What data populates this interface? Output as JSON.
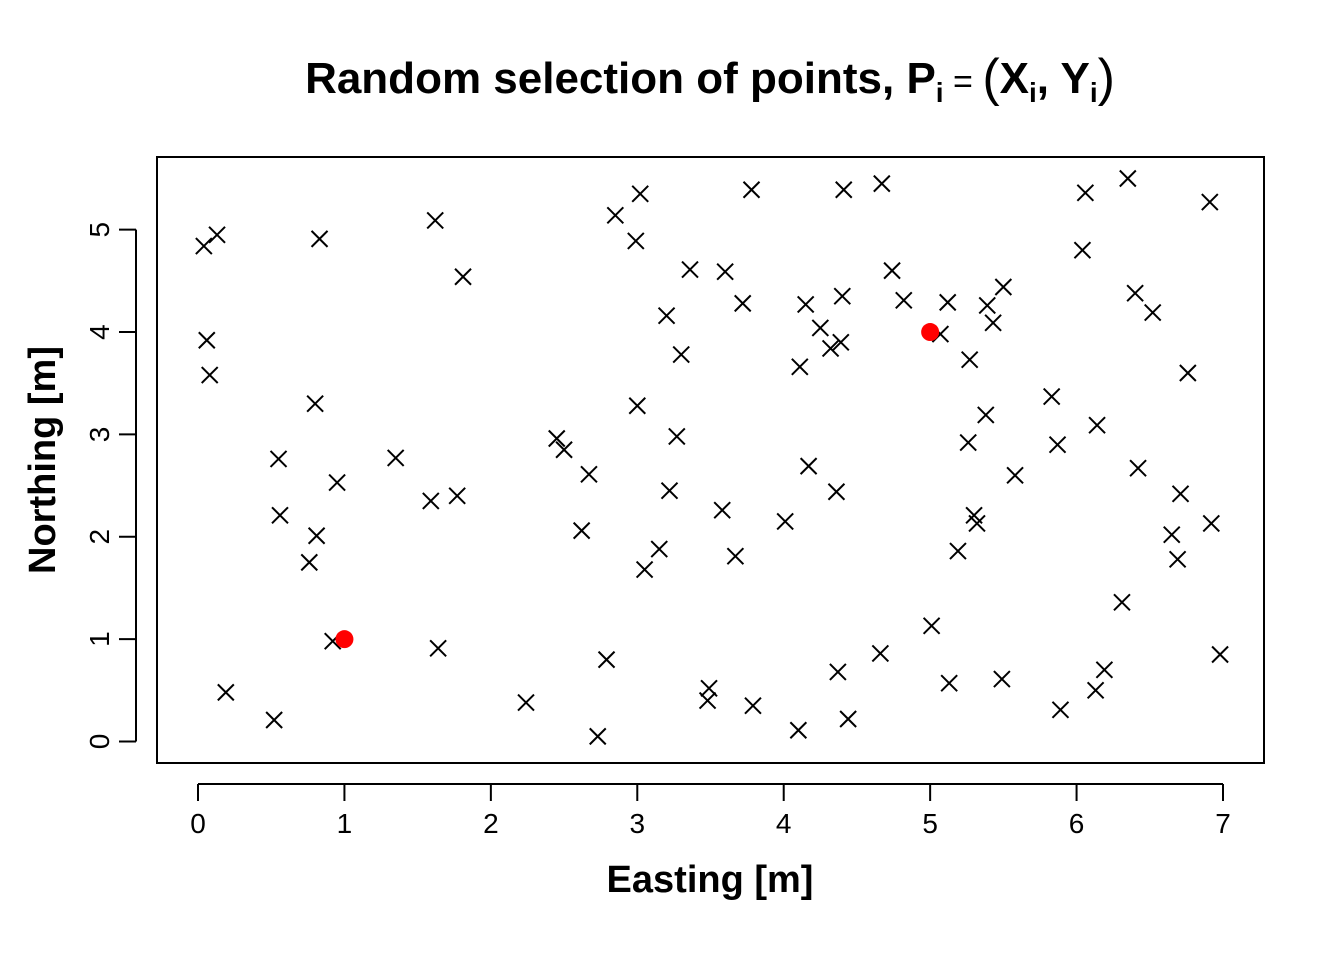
{
  "chart_data": {
    "type": "scatter",
    "title": {
      "prefix": "Random selection of points, ",
      "p": "P",
      "sub_i": "i",
      "equals": " = ",
      "lparen": "(",
      "x": "X",
      "comma": ", ",
      "y": "Y",
      "rparen": ")"
    },
    "xlabel": "Easting [m]",
    "ylabel": "Northing [m]",
    "xlim": [
      -0.28,
      7.28
    ],
    "ylim": [
      -0.21,
      5.71
    ],
    "xticks": [
      0,
      1,
      2,
      3,
      4,
      5,
      6,
      7
    ],
    "yticks": [
      0,
      1,
      2,
      3,
      4,
      5
    ],
    "grid": false,
    "marker_color": "#000000",
    "highlight_color": "#ff0000",
    "highlight_points": [
      [
        1.0,
        1.0
      ],
      [
        5.0,
        4.0
      ]
    ],
    "points": [
      [
        0.04,
        4.84
      ],
      [
        0.13,
        4.95
      ],
      [
        0.06,
        3.92
      ],
      [
        0.08,
        3.58
      ],
      [
        0.19,
        0.48
      ],
      [
        0.52,
        0.21
      ],
      [
        0.55,
        2.76
      ],
      [
        0.56,
        2.21
      ],
      [
        0.76,
        1.75
      ],
      [
        0.8,
        3.3
      ],
      [
        0.81,
        2.01
      ],
      [
        0.83,
        4.91
      ],
      [
        0.92,
        0.98
      ],
      [
        0.95,
        2.53
      ],
      [
        1.35,
        2.77
      ],
      [
        1.59,
        2.35
      ],
      [
        1.62,
        5.09
      ],
      [
        1.64,
        0.91
      ],
      [
        1.77,
        2.4
      ],
      [
        1.81,
        4.54
      ],
      [
        2.24,
        0.38
      ],
      [
        2.45,
        2.96
      ],
      [
        2.5,
        2.85
      ],
      [
        2.62,
        2.06
      ],
      [
        2.67,
        2.61
      ],
      [
        2.73,
        0.05
      ],
      [
        2.79,
        0.8
      ],
      [
        2.85,
        5.14
      ],
      [
        2.99,
        4.89
      ],
      [
        3.0,
        3.28
      ],
      [
        3.02,
        5.35
      ],
      [
        3.05,
        1.68
      ],
      [
        3.15,
        1.88
      ],
      [
        3.2,
        4.16
      ],
      [
        3.22,
        2.45
      ],
      [
        3.27,
        2.98
      ],
      [
        3.3,
        3.78
      ],
      [
        3.36,
        4.61
      ],
      [
        3.48,
        0.4
      ],
      [
        3.49,
        0.52
      ],
      [
        3.58,
        2.26
      ],
      [
        3.6,
        4.59
      ],
      [
        3.67,
        1.81
      ],
      [
        3.72,
        4.28
      ],
      [
        3.78,
        5.39
      ],
      [
        3.79,
        0.35
      ],
      [
        4.01,
        2.15
      ],
      [
        4.1,
        0.11
      ],
      [
        4.11,
        3.66
      ],
      [
        4.15,
        4.27
      ],
      [
        4.17,
        2.69
      ],
      [
        4.25,
        4.04
      ],
      [
        4.32,
        3.84
      ],
      [
        4.36,
        2.44
      ],
      [
        4.37,
        0.68
      ],
      [
        4.39,
        3.9
      ],
      [
        4.4,
        4.35
      ],
      [
        4.41,
        5.39
      ],
      [
        4.44,
        0.22
      ],
      [
        4.66,
        0.86
      ],
      [
        4.67,
        5.45
      ],
      [
        4.74,
        4.6
      ],
      [
        4.82,
        4.31
      ],
      [
        5.01,
        1.13
      ],
      [
        5.07,
        3.98
      ],
      [
        5.12,
        4.29
      ],
      [
        5.13,
        0.57
      ],
      [
        5.19,
        1.86
      ],
      [
        5.26,
        2.92
      ],
      [
        5.27,
        3.73
      ],
      [
        5.3,
        2.21
      ],
      [
        5.32,
        2.13
      ],
      [
        5.38,
        3.19
      ],
      [
        5.39,
        4.26
      ],
      [
        5.43,
        4.09
      ],
      [
        5.49,
        0.61
      ],
      [
        5.5,
        4.44
      ],
      [
        5.58,
        2.6
      ],
      [
        5.83,
        3.37
      ],
      [
        5.87,
        2.9
      ],
      [
        5.89,
        0.31
      ],
      [
        6.04,
        4.8
      ],
      [
        6.06,
        5.36
      ],
      [
        6.13,
        0.5
      ],
      [
        6.14,
        3.09
      ],
      [
        6.19,
        0.7
      ],
      [
        6.31,
        1.36
      ],
      [
        6.35,
        5.5
      ],
      [
        6.4,
        4.38
      ],
      [
        6.42,
        2.67
      ],
      [
        6.52,
        4.19
      ],
      [
        6.65,
        2.02
      ],
      [
        6.69,
        1.78
      ],
      [
        6.71,
        2.42
      ],
      [
        6.76,
        3.6
      ],
      [
        6.91,
        5.27
      ],
      [
        6.92,
        2.13
      ],
      [
        6.98,
        0.85
      ]
    ]
  }
}
